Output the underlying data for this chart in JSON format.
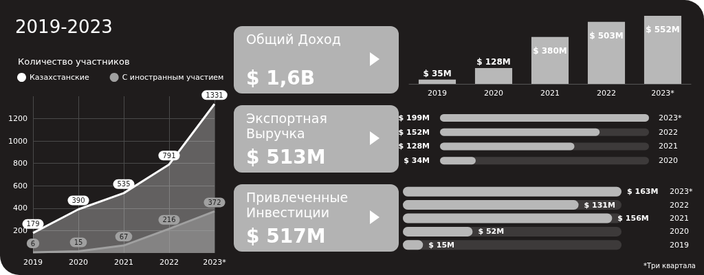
{
  "chart_data": [
    {
      "type": "area",
      "title": "2019-2023",
      "subtitle": "Количество участников",
      "categories": [
        "2019",
        "2020",
        "2021",
        "2022",
        "2023*"
      ],
      "series": [
        {
          "name": "Казахстанские",
          "color": "#ffffff",
          "values": [
            179,
            390,
            535,
            791,
            1331
          ]
        },
        {
          "name": "С иностранным участием",
          "color": "#a0a0a0",
          "values": [
            6,
            15,
            67,
            216,
            372
          ]
        }
      ],
      "ylim": [
        0,
        1400
      ],
      "yticks": [
        200,
        400,
        600,
        800,
        1000,
        1200
      ],
      "grid": true,
      "legend": "top left",
      "marker": "none",
      "data_labels": true
    },
    {
      "type": "other",
      "title": "Общий Доход",
      "annotations": [
        "$ 1,6B"
      ]
    },
    {
      "type": "other",
      "title": "Экспортная Выручка",
      "annotations": [
        "$ 513M"
      ]
    },
    {
      "type": "other",
      "title": "Привлеченные Инвестиции",
      "annotations": [
        "$ 517M"
      ]
    },
    {
      "type": "bar",
      "categories": [
        "2019",
        "2020",
        "2021",
        "2022",
        "2023*"
      ],
      "values": [
        35,
        128,
        380,
        503,
        552
      ],
      "color": "#b8b8b8",
      "value_labels": [
        "$ 35M",
        "$ 128M",
        "$ 380M",
        "$ 503M",
        "$ 552M"
      ],
      "tick_labels": "x"
    },
    {
      "type": "bar",
      "orientation": "horizontal",
      "categories": [
        "2023*",
        "2022",
        "2021",
        "2020"
      ],
      "values": [
        199,
        152,
        128,
        34
      ],
      "color": "#b8b8b8",
      "value_labels": [
        "$ 199M",
        "$ 152M",
        "$ 128M",
        "$ 34M"
      ],
      "xlim": [
        0,
        199
      ],
      "tick_labels": "y"
    },
    {
      "type": "bar",
      "orientation": "horizontal",
      "categories": [
        "2023*",
        "2022",
        "2021",
        "2020",
        "2019"
      ],
      "values": [
        163,
        131,
        156,
        52,
        15
      ],
      "color": "#b8b8b8",
      "value_labels": [
        "$ 163M",
        "$ 131M",
        "$ 156M",
        "$ 52M",
        "$ 15M"
      ],
      "xlim": [
        0,
        163
      ],
      "tick_labels": "y",
      "annotations": [
        "*Три квартала"
      ]
    }
  ]
}
